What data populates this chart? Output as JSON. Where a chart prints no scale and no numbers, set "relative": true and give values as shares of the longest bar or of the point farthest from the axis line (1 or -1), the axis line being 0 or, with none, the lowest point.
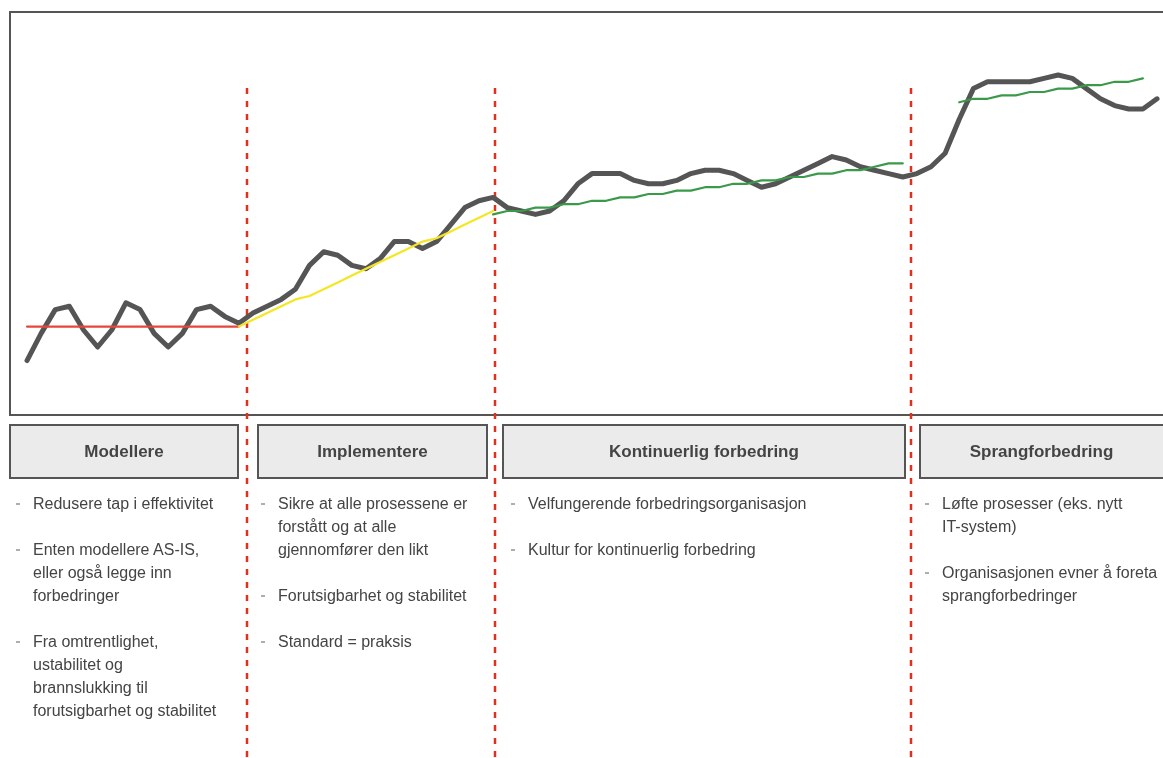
{
  "chart_data": {
    "type": "line",
    "relative": true,
    "categories": [
      null,
      null,
      null,
      null,
      null,
      null,
      null,
      null,
      null,
      null,
      null,
      null,
      null,
      null,
      null,
      null,
      null,
      null,
      null,
      null,
      null,
      null,
      null,
      null,
      null,
      null,
      null,
      null,
      null,
      null,
      null,
      null,
      null,
      null,
      null,
      null,
      null,
      null,
      null,
      null,
      null,
      null,
      null,
      null,
      null,
      null,
      null,
      null,
      null,
      null,
      null,
      null,
      null,
      null,
      null,
      null,
      null,
      null,
      null,
      null,
      null,
      null,
      null,
      null,
      null,
      null,
      null,
      null,
      null,
      null,
      null,
      null,
      null,
      null,
      null,
      null,
      null,
      null,
      null,
      null,
      null
    ],
    "series": [
      {
        "color": "#555555",
        "values": [
          0.16,
          0.24,
          0.31,
          0.32,
          0.25,
          0.2,
          0.25,
          0.33,
          0.31,
          0.24,
          0.2,
          0.24,
          0.31,
          0.32,
          0.29,
          0.27,
          0.3,
          0.32,
          0.34,
          0.37,
          0.44,
          0.48,
          0.47,
          0.44,
          0.43,
          0.46,
          0.51,
          0.51,
          0.49,
          0.51,
          0.56,
          0.61,
          0.63,
          0.64,
          0.61,
          0.6,
          0.59,
          0.6,
          0.63,
          0.68,
          0.71,
          0.71,
          0.71,
          0.69,
          0.68,
          0.68,
          0.69,
          0.71,
          0.72,
          0.72,
          0.71,
          0.69,
          0.67,
          0.68,
          0.7,
          0.72,
          0.74,
          0.76,
          0.75,
          0.73,
          0.72,
          0.71,
          0.7,
          0.71,
          0.73,
          0.77,
          0.87,
          0.96,
          0.98,
          0.98,
          0.98,
          0.98,
          0.99,
          1,
          0.99,
          0.96,
          0.93,
          0.91,
          0.9,
          0.9,
          0.93
        ]
      },
      {
        "color": "#e8453c",
        "values": [
          0.26,
          0.26,
          0.26,
          0.26,
          0.26,
          0.26,
          0.26,
          0.26,
          0.26,
          0.26,
          0.26,
          0.26,
          0.26,
          0.26,
          0.26,
          0.26,
          null,
          null,
          null,
          null,
          null,
          null,
          null,
          null,
          null,
          null,
          null,
          null,
          null,
          null,
          null,
          null,
          null,
          null,
          null,
          null,
          null,
          null,
          null,
          null,
          null,
          null,
          null,
          null,
          null,
          null,
          null,
          null,
          null,
          null,
          null,
          null,
          null,
          null,
          null,
          null,
          null,
          null,
          null,
          null,
          null,
          null,
          null,
          null,
          null,
          null,
          null,
          null,
          null,
          null,
          null,
          null,
          null,
          null,
          null,
          null,
          null,
          null,
          null,
          null,
          null
        ]
      },
      {
        "color": "#f5e625",
        "values": [
          null,
          null,
          null,
          null,
          null,
          null,
          null,
          null,
          null,
          null,
          null,
          null,
          null,
          null,
          null,
          0.26,
          0.28,
          0.3,
          0.32,
          0.34,
          0.35,
          0.37,
          0.39,
          0.41,
          0.43,
          0.45,
          0.47,
          0.49,
          0.51,
          0.52,
          0.54,
          0.56,
          0.58,
          0.6,
          null,
          null,
          null,
          null,
          null,
          null,
          null,
          null,
          null,
          null,
          null,
          null,
          null,
          null,
          null,
          null,
          null,
          null,
          null,
          null,
          null,
          null,
          null,
          null,
          null,
          null,
          null,
          null,
          null,
          null,
          null,
          null,
          null,
          null,
          null,
          null,
          null,
          null,
          null,
          null,
          null,
          null,
          null,
          null,
          null,
          null,
          null
        ]
      },
      {
        "color": "#3a9a4a",
        "values": [
          null,
          null,
          null,
          null,
          null,
          null,
          null,
          null,
          null,
          null,
          null,
          null,
          null,
          null,
          null,
          null,
          null,
          null,
          null,
          null,
          null,
          null,
          null,
          null,
          null,
          null,
          null,
          null,
          null,
          null,
          null,
          null,
          null,
          0.59,
          0.6,
          0.6,
          0.61,
          0.61,
          0.62,
          0.62,
          0.63,
          0.63,
          0.64,
          0.64,
          0.65,
          0.65,
          0.66,
          0.66,
          0.67,
          0.67,
          0.68,
          0.68,
          0.69,
          0.69,
          0.7,
          0.7,
          0.71,
          0.71,
          0.72,
          0.72,
          0.73,
          0.74,
          0.74,
          null,
          null,
          null,
          null,
          null,
          null,
          null,
          null,
          null,
          null,
          null,
          null,
          null,
          null,
          null,
          null,
          null,
          null
        ]
      },
      {
        "color": "#3a9a4a",
        "values": [
          null,
          null,
          null,
          null,
          null,
          null,
          null,
          null,
          null,
          null,
          null,
          null,
          null,
          null,
          null,
          null,
          null,
          null,
          null,
          null,
          null,
          null,
          null,
          null,
          null,
          null,
          null,
          null,
          null,
          null,
          null,
          null,
          null,
          null,
          null,
          null,
          null,
          null,
          null,
          null,
          null,
          null,
          null,
          null,
          null,
          null,
          null,
          null,
          null,
          null,
          null,
          null,
          null,
          null,
          null,
          null,
          null,
          null,
          null,
          null,
          null,
          null,
          null,
          null,
          null,
          null,
          0.92,
          0.93,
          0.93,
          0.94,
          0.94,
          0.95,
          0.95,
          0.96,
          0.96,
          0.97,
          0.97,
          0.98,
          0.98,
          0.99,
          null
        ]
      }
    ],
    "annotations": [
      "Modellere",
      "Redusere tap i effektivitet",
      "Enten modellere AS-IS, eller også legge inn forbedringer",
      "Fra omtrentlighet, ustabilitet og brannslukking til forutsigbarhet og stabilitet",
      "Implementere",
      "Sikre at alle prosessene er forstått og at alle gjennomfører den likt",
      "Forutsigbarhet og stabilitet",
      "Standard = praksis",
      "Kontinuerlig forbedring",
      "Velfungerende forbedringsorganisasjon",
      "Kultur for kontinuerlig forbedring",
      "Sprangforbedring",
      "Løfte prosesser (eks. nytt IT-system)",
      "Organisasjonen evner å foreta sprangforbedringer"
    ]
  }
}
